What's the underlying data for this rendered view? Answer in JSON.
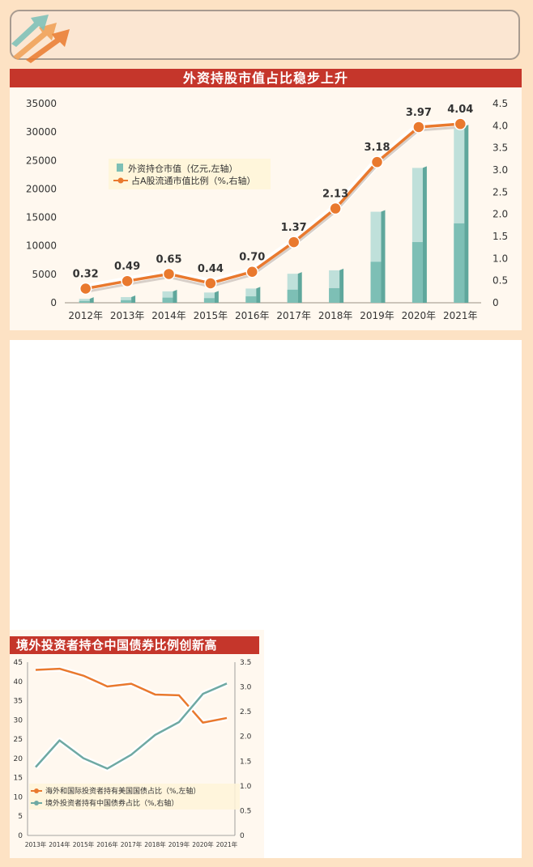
{
  "colors": {
    "bar_light": "#bfe0da",
    "bar_dark": "#7dbfb5",
    "bar_side": "#5fa79c",
    "line_orange": "#e9792e",
    "line_teal": "#6fa9a3",
    "title_red": "#c5362b"
  },
  "chart1": {
    "title": "外资持股市值占比稳步上升",
    "legend_bar": "外资持仓市值（亿元,左轴）",
    "legend_line": "占A股流通市值比例（%,右轴）"
  },
  "chart2": {
    "title": "境外投资者持仓中国债券比例创新高",
    "legend_us": "海外和国际投资者持有美国国债占比（%,左轴）",
    "legend_cn": "境外投资者持有中国债券占比（%,右轴）"
  },
  "chart_data": [
    {
      "type": "bar",
      "title": "外资持股市值占比稳步上升",
      "categories": [
        "2012年",
        "2013年",
        "2014年",
        "2015年",
        "2016年",
        "2017年",
        "2018年",
        "2019年",
        "2020年",
        "2021年"
      ],
      "series": [
        {
          "name": "外资持仓市值（亿元,左轴）",
          "axis": "left",
          "type": "bar",
          "values": [
            700,
            1000,
            2000,
            1800,
            2500,
            5100,
            5700,
            16000,
            23700,
            31000
          ]
        },
        {
          "name": "占A股流通市值比例（%,右轴）",
          "axis": "right",
          "type": "line",
          "values": [
            0.32,
            0.49,
            0.65,
            0.44,
            0.7,
            1.37,
            2.13,
            3.18,
            3.97,
            4.04
          ],
          "labels": [
            "0.32",
            "0.49",
            "0.65",
            "0.44",
            "0.70",
            "1.37",
            "2.13",
            "3.18",
            "3.97",
            "4.04"
          ]
        }
      ],
      "yleft_ticks": [
        "35000",
        "30000",
        "25000",
        "20000",
        "15000",
        "10000",
        "5000",
        "0"
      ],
      "yright_ticks": [
        "4.5",
        "4.0",
        "3.5",
        "3.0",
        "2.5",
        "2.0",
        "1.5",
        "1.0",
        "0.5",
        "0"
      ],
      "yleft_lim": [
        0,
        35000
      ],
      "yright_lim": [
        0,
        4.5
      ],
      "legend": "top-left",
      "grid": false
    },
    {
      "type": "line",
      "title": "境外投资者持仓中国债券比例创新高",
      "categories": [
        "2013年",
        "2014年",
        "2015年",
        "2016年",
        "2017年",
        "2018年",
        "2019年",
        "2020年",
        "2021年"
      ],
      "series": [
        {
          "name": "海外和国际投资者持有美国国债占比（%,左轴）",
          "axis": "left",
          "values": [
            43.0,
            43.3,
            41.5,
            38.7,
            39.4,
            36.6,
            36.4,
            29.3,
            30.5
          ]
        },
        {
          "name": "境外投资者持有中国债券占比（%,右轴）",
          "axis": "right",
          "values": [
            1.38,
            1.92,
            1.56,
            1.35,
            1.63,
            2.03,
            2.29,
            2.86,
            3.07
          ]
        }
      ],
      "yleft_ticks": [
        "45",
        "40",
        "35",
        "30",
        "25",
        "20",
        "15",
        "10",
        "5",
        "0"
      ],
      "yright_ticks": [
        "3.5",
        "3.0",
        "2.5",
        "2.0",
        "1.5",
        "1.0",
        "0.5",
        "0"
      ],
      "yleft_lim": [
        0,
        45
      ],
      "yright_lim": [
        0,
        3.5
      ],
      "legend": "bottom-left",
      "grid": false
    }
  ]
}
